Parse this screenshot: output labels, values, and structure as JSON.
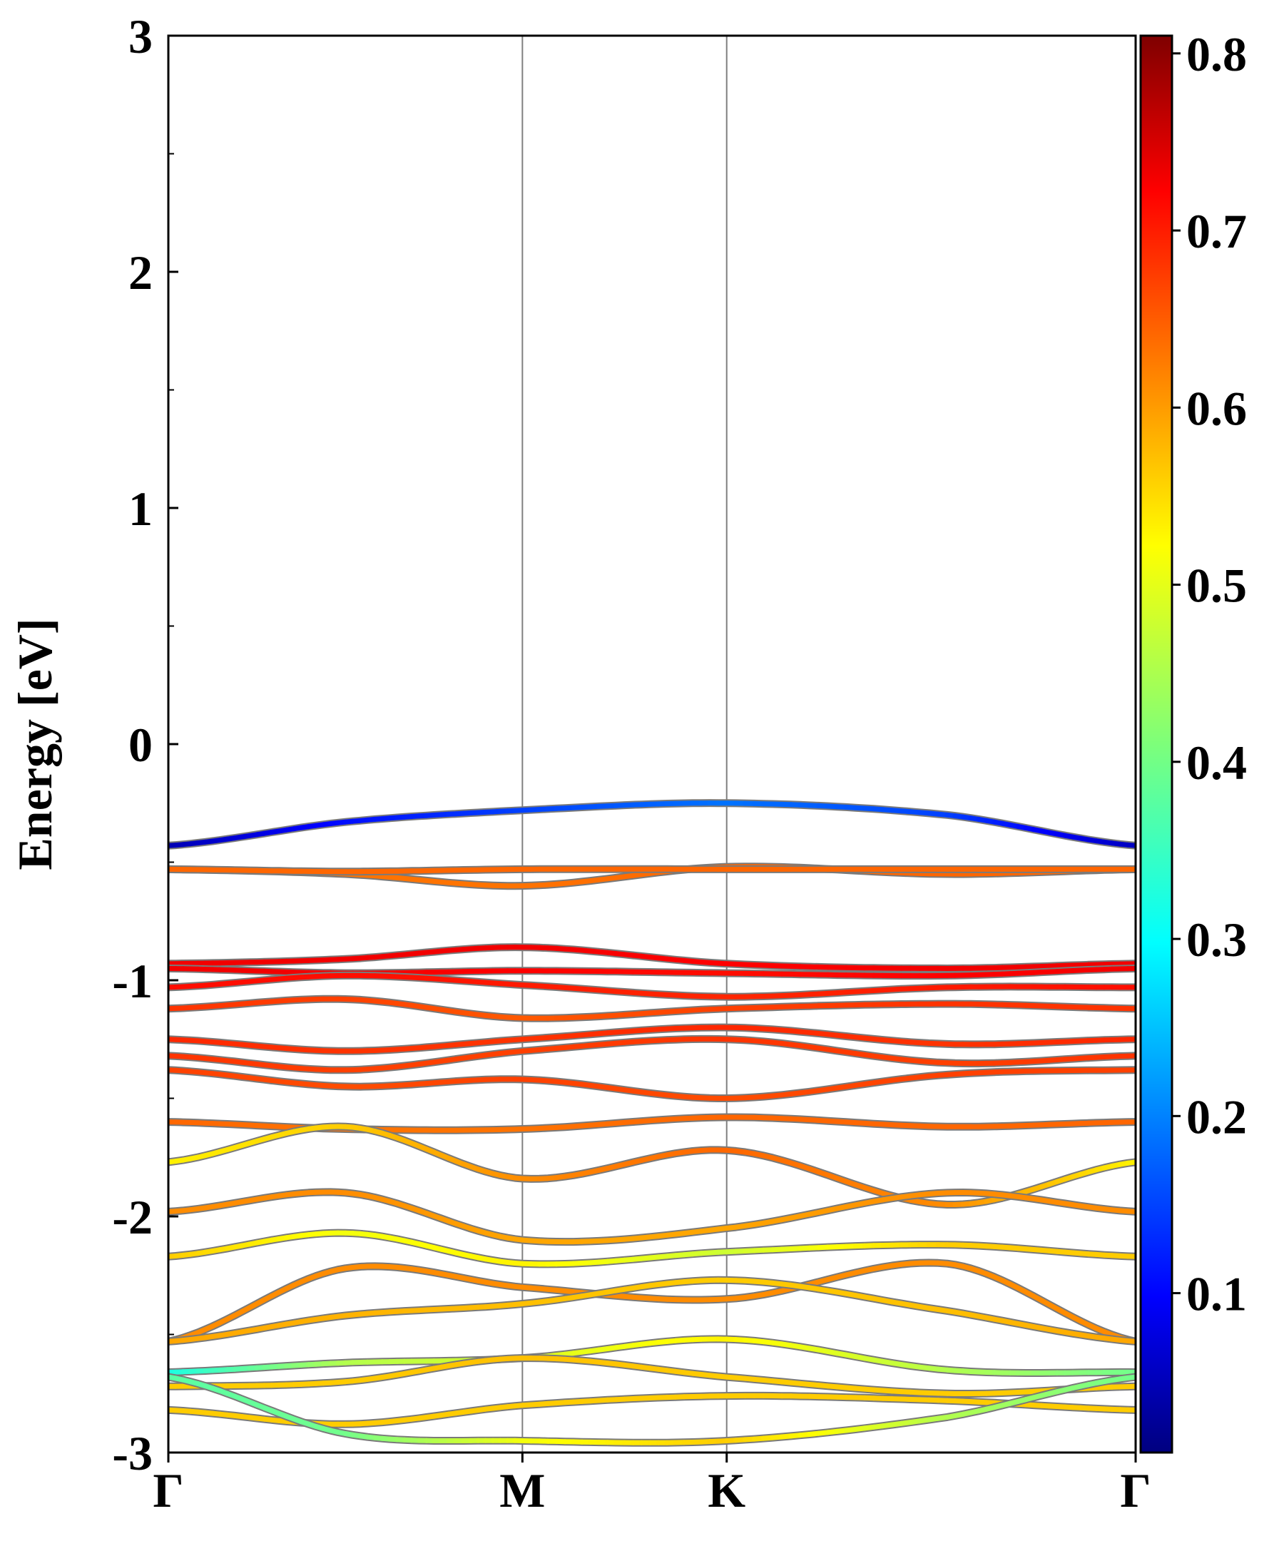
{
  "chart_data": {
    "type": "line",
    "title": "",
    "xlabel": "",
    "ylabel": "Energy [eV]",
    "ylim": [
      -3,
      3
    ],
    "y_ticks": [
      "3",
      "2",
      "1",
      "0",
      "-1",
      "-2",
      "-3"
    ],
    "y_tick_values": [
      3,
      2,
      1,
      0,
      -1,
      -2,
      -3
    ],
    "k_path": [
      "Γ",
      "M",
      "K",
      "Γ"
    ],
    "k_positions": [
      0,
      1,
      1.577,
      2.732
    ],
    "colorbar": {
      "colormap": "jet",
      "range": [
        0.01,
        0.81
      ],
      "ticks": [
        "0.8",
        "0.7",
        "0.6",
        "0.5",
        "0.4",
        "0.3",
        "0.2",
        "0.1"
      ],
      "tick_values": [
        0.8,
        0.7,
        0.6,
        0.5,
        0.4,
        0.3,
        0.2,
        0.1
      ]
    },
    "bands": [
      {
        "k": [
          0,
          0.5,
          1,
          1.577,
          2.2,
          2.732
        ],
        "energy": [
          -0.43,
          -0.33,
          -0.28,
          -0.25,
          -0.3,
          -0.43
        ],
        "weight": [
          0.05,
          0.12,
          0.16,
          0.2,
          0.16,
          0.06
        ]
      },
      {
        "k": [
          0,
          0.5,
          1,
          1.577,
          2.2,
          2.732
        ],
        "energy": [
          -0.53,
          -0.55,
          -0.6,
          -0.52,
          -0.55,
          -0.53
        ],
        "weight": [
          0.63,
          0.62,
          0.62,
          0.63,
          0.63,
          0.63
        ]
      },
      {
        "k": [
          0,
          0.5,
          1,
          1.577,
          2.2,
          2.732
        ],
        "energy": [
          -0.53,
          -0.54,
          -0.53,
          -0.53,
          -0.53,
          -0.53
        ],
        "weight": [
          0.63,
          0.63,
          0.63,
          0.63,
          0.63,
          0.63
        ]
      },
      {
        "k": [
          0,
          0.5,
          1,
          1.577,
          2.2,
          2.732
        ],
        "energy": [
          -0.93,
          -0.91,
          -0.86,
          -0.93,
          -0.95,
          -0.93
        ],
        "weight": [
          0.72,
          0.72,
          0.72,
          0.71,
          0.72,
          0.72
        ]
      },
      {
        "k": [
          0,
          0.5,
          1,
          1.577,
          2.2,
          2.732
        ],
        "energy": [
          -0.95,
          -0.97,
          -0.96,
          -0.97,
          -0.98,
          -0.95
        ],
        "weight": [
          0.72,
          0.72,
          0.71,
          0.7,
          0.71,
          0.72
        ]
      },
      {
        "k": [
          0,
          0.5,
          1,
          1.577,
          2.2,
          2.732
        ],
        "energy": [
          -1.03,
          -0.98,
          -1.02,
          -1.07,
          -1.03,
          -1.03
        ],
        "weight": [
          0.7,
          0.7,
          0.69,
          0.68,
          0.69,
          0.7
        ]
      },
      {
        "k": [
          0,
          0.5,
          1,
          1.577,
          2.2,
          2.732
        ],
        "energy": [
          -1.12,
          -1.08,
          -1.16,
          -1.12,
          -1.1,
          -1.12
        ],
        "weight": [
          0.67,
          0.66,
          0.64,
          0.66,
          0.67,
          0.67
        ]
      },
      {
        "k": [
          0,
          0.5,
          1,
          1.577,
          2.2,
          2.732
        ],
        "energy": [
          -1.25,
          -1.3,
          -1.25,
          -1.2,
          -1.27,
          -1.25
        ],
        "weight": [
          0.68,
          0.67,
          0.67,
          0.68,
          0.67,
          0.68
        ]
      },
      {
        "k": [
          0,
          0.5,
          1,
          1.577,
          2.2,
          2.732
        ],
        "energy": [
          -1.32,
          -1.38,
          -1.3,
          -1.25,
          -1.35,
          -1.32
        ],
        "weight": [
          0.67,
          0.66,
          0.66,
          0.67,
          0.66,
          0.67
        ]
      },
      {
        "k": [
          0,
          0.5,
          1,
          1.577,
          2.2,
          2.732
        ],
        "energy": [
          -1.38,
          -1.45,
          -1.42,
          -1.5,
          -1.4,
          -1.38
        ],
        "weight": [
          0.66,
          0.65,
          0.66,
          0.65,
          0.66,
          0.66
        ]
      },
      {
        "k": [
          0,
          0.5,
          1,
          1.577,
          2.2,
          2.732
        ],
        "energy": [
          -1.6,
          -1.63,
          -1.63,
          -1.58,
          -1.62,
          -1.6
        ],
        "weight": [
          0.63,
          0.62,
          0.62,
          0.63,
          0.63,
          0.63
        ]
      },
      {
        "k": [
          0,
          0.5,
          1,
          1.577,
          2.2,
          2.732
        ],
        "energy": [
          -1.77,
          -1.62,
          -1.84,
          -1.72,
          -1.95,
          -1.77
        ],
        "weight": [
          0.52,
          0.55,
          0.6,
          0.63,
          0.6,
          0.52
        ]
      },
      {
        "k": [
          0,
          0.5,
          1,
          1.577,
          2.2,
          2.732
        ],
        "energy": [
          -1.98,
          -1.9,
          -2.1,
          -2.05,
          -1.9,
          -1.98
        ],
        "weight": [
          0.6,
          0.6,
          0.58,
          0.58,
          0.6,
          0.6
        ]
      },
      {
        "k": [
          0,
          0.5,
          1,
          1.577,
          2.2,
          2.732
        ],
        "energy": [
          -2.17,
          -2.07,
          -2.2,
          -2.15,
          -2.12,
          -2.17
        ],
        "weight": [
          0.55,
          0.5,
          0.52,
          0.47,
          0.55,
          0.55
        ]
      },
      {
        "k": [
          0,
          0.5,
          1,
          1.577,
          2.2,
          2.732
        ],
        "energy": [
          -2.53,
          -2.22,
          -2.3,
          -2.35,
          -2.2,
          -2.53
        ],
        "weight": [
          0.6,
          0.6,
          0.6,
          0.6,
          0.6,
          0.6
        ]
      },
      {
        "k": [
          0,
          0.5,
          1,
          1.577,
          2.2,
          2.732
        ],
        "energy": [
          -2.53,
          -2.42,
          -2.37,
          -2.27,
          -2.4,
          -2.53
        ],
        "weight": [
          0.58,
          0.57,
          0.56,
          0.55,
          0.56,
          0.58
        ]
      },
      {
        "k": [
          0,
          0.5,
          1,
          1.577,
          2.2,
          2.732
        ],
        "energy": [
          -2.66,
          -2.62,
          -2.6,
          -2.52,
          -2.65,
          -2.66
        ],
        "weight": [
          0.33,
          0.45,
          0.48,
          0.52,
          0.45,
          0.4
        ]
      },
      {
        "k": [
          0,
          0.5,
          1,
          1.577,
          2.2,
          2.732
        ],
        "energy": [
          -2.72,
          -2.7,
          -2.6,
          -2.68,
          -2.75,
          -2.72
        ],
        "weight": [
          0.55,
          0.55,
          0.56,
          0.55,
          0.55,
          0.55
        ]
      },
      {
        "k": [
          0,
          0.5,
          1,
          1.577,
          2.2,
          2.732
        ],
        "energy": [
          -2.82,
          -2.88,
          -2.8,
          -2.76,
          -2.78,
          -2.82
        ],
        "weight": [
          0.55,
          0.55,
          0.55,
          0.55,
          0.55,
          0.55
        ]
      },
      {
        "k": [
          0,
          0.5,
          1,
          1.577,
          2.2,
          2.732
        ],
        "energy": [
          -2.68,
          -2.92,
          -2.95,
          -2.95,
          -2.85,
          -2.68
        ],
        "weight": [
          0.38,
          0.4,
          0.5,
          0.55,
          0.45,
          0.4
        ]
      }
    ]
  }
}
